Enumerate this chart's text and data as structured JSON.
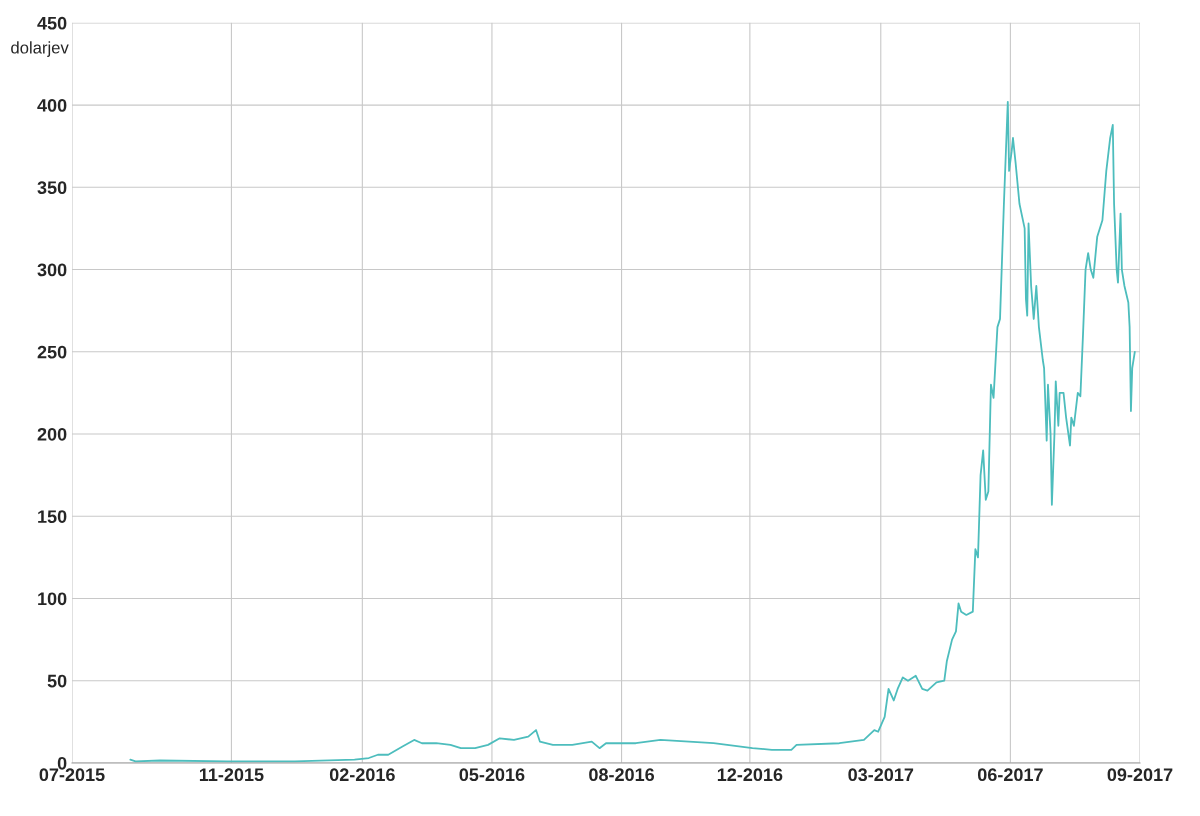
{
  "chart_data": {
    "type": "line",
    "ylabel": "dolarjev",
    "x": [
      "2015-08-05",
      "2015-08-09",
      "2015-08-28",
      "2015-10-19",
      "2015-12-10",
      "2016-01-25",
      "2016-02-05",
      "2016-02-12",
      "2016-02-20",
      "2016-03-02",
      "2016-03-11",
      "2016-03-17",
      "2016-03-28",
      "2016-04-08",
      "2016-04-16",
      "2016-04-27",
      "2016-05-07",
      "2016-05-16",
      "2016-05-27",
      "2016-06-07",
      "2016-06-13",
      "2016-06-16",
      "2016-06-26",
      "2016-07-11",
      "2016-07-26",
      "2016-08-01",
      "2016-08-06",
      "2016-08-29",
      "2016-09-17",
      "2016-10-28",
      "2016-11-27",
      "2016-12-12",
      "2016-12-27",
      "2016-12-31",
      "2017-02-02",
      "2017-02-21",
      "2017-03-01",
      "2017-03-04",
      "2017-03-09",
      "2017-03-12",
      "2017-03-16",
      "2017-03-19",
      "2017-03-23",
      "2017-03-27",
      "2017-04-02",
      "2017-04-07",
      "2017-04-11",
      "2017-04-18",
      "2017-04-24",
      "2017-04-26",
      "2017-04-30",
      "2017-05-03",
      "2017-05-05",
      "2017-05-07",
      "2017-05-11",
      "2017-05-16",
      "2017-05-18",
      "2017-05-20",
      "2017-05-22",
      "2017-05-24",
      "2017-05-26",
      "2017-05-28",
      "2017-05-30",
      "2017-06-01",
      "2017-06-04",
      "2017-06-06",
      "2017-06-09",
      "2017-06-12",
      "2017-06-13",
      "2017-06-15",
      "2017-06-16",
      "2017-06-18",
      "2017-06-21",
      "2017-06-25",
      "2017-06-26",
      "2017-06-27",
      "2017-06-28",
      "2017-06-30",
      "2017-07-02",
      "2017-07-04",
      "2017-07-06",
      "2017-07-09",
      "2017-07-10",
      "2017-07-12",
      "2017-07-13",
      "2017-07-15",
      "2017-07-16",
      "2017-07-18",
      "2017-07-19",
      "2017-07-21",
      "2017-07-22",
      "2017-07-25",
      "2017-07-27",
      "2017-07-30",
      "2017-07-31",
      "2017-08-02",
      "2017-08-05",
      "2017-08-07",
      "2017-08-09",
      "2017-08-11",
      "2017-08-13",
      "2017-08-15",
      "2017-08-17",
      "2017-08-20",
      "2017-08-24",
      "2017-08-27",
      "2017-08-30",
      "2017-09-01",
      "2017-09-02",
      "2017-09-04",
      "2017-09-05",
      "2017-09-07",
      "2017-09-08",
      "2017-09-10",
      "2017-09-13",
      "2017-09-14",
      "2017-09-15",
      "2017-09-16",
      "2017-09-18"
    ],
    "series": [
      {
        "color": "#4dbdbd",
        "values": [
          2,
          1,
          1.5,
          1,
          1,
          2,
          3,
          5,
          5,
          10,
          14,
          12,
          12,
          11,
          9,
          9,
          11,
          15,
          14,
          16,
          20,
          13,
          11,
          11,
          13,
          9,
          12,
          12,
          14,
          12,
          9,
          8,
          8,
          11,
          12,
          14,
          20,
          19,
          28,
          45,
          38,
          45,
          52,
          50,
          53,
          45,
          44,
          49,
          50,
          62,
          75,
          80,
          97,
          92,
          90,
          92,
          130,
          125,
          175,
          190,
          160,
          165,
          230,
          222,
          265,
          270,
          340,
          402,
          360,
          372,
          380,
          365,
          340,
          325,
          282,
          272,
          328,
          290,
          270,
          290,
          265,
          245,
          240,
          196,
          230,
          200,
          157,
          200,
          232,
          205,
          225,
          225,
          210,
          193,
          210,
          205,
          225,
          223,
          260,
          300,
          310,
          300,
          295,
          320,
          330,
          360,
          380,
          388,
          340,
          300,
          292,
          334,
          300,
          290,
          280,
          265,
          214,
          240,
          250
        ]
      }
    ],
    "xlim": [
      "2015-06-21",
      "2017-09-22"
    ],
    "xticks": [
      {
        "value": "2015-06-21",
        "label": "07-2015"
      },
      {
        "value": "2015-10-22",
        "label": "11-2015"
      },
      {
        "value": "2016-01-31",
        "label": "02-2016"
      },
      {
        "value": "2016-05-10",
        "label": "05-2016"
      },
      {
        "value": "2016-08-18",
        "label": "08-2016"
      },
      {
        "value": "2016-11-25",
        "label": "12-2016"
      },
      {
        "value": "2017-03-06",
        "label": "03-2017"
      },
      {
        "value": "2017-06-14",
        "label": "06-2017"
      },
      {
        "value": "2017-09-22",
        "label": "09-2017"
      }
    ],
    "ylim": [
      0,
      450
    ],
    "yticks": [
      0,
      50,
      100,
      150,
      200,
      250,
      300,
      350,
      400,
      450
    ],
    "grid": true,
    "marker": "none",
    "line_style": "solid"
  }
}
